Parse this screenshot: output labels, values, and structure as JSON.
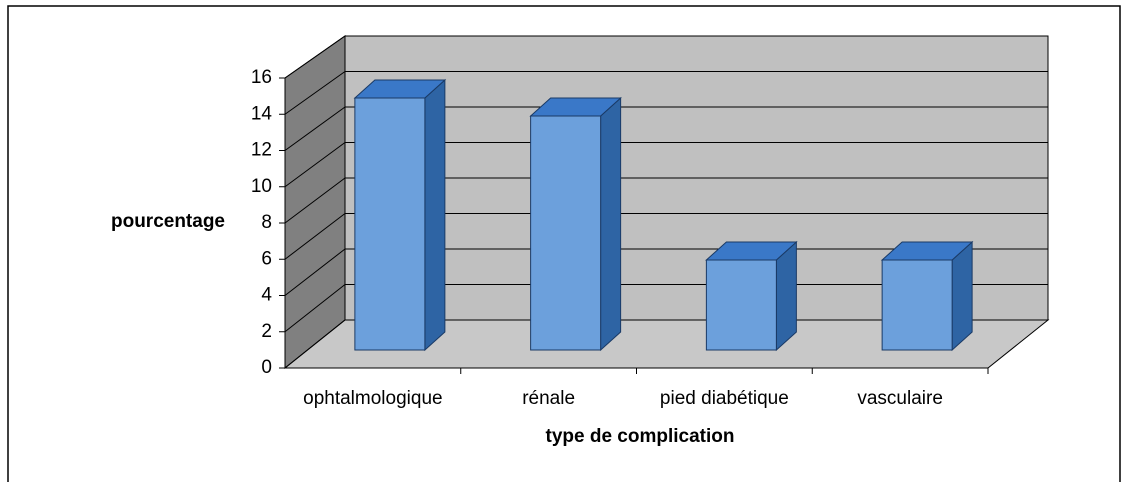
{
  "chart_data": {
    "type": "bar",
    "x_label": "type de complication",
    "y_label": "pourcentage",
    "categories": [
      "ophtalmologique",
      "rénale",
      "pied diabétique",
      "vasculaire"
    ],
    "values": [
      14,
      13,
      5,
      5
    ],
    "color": "#6ca0dc",
    "ylim": [
      0,
      16
    ],
    "yticks": [
      0,
      2,
      4,
      6,
      8,
      10,
      12,
      14,
      16
    ],
    "grid": true
  }
}
